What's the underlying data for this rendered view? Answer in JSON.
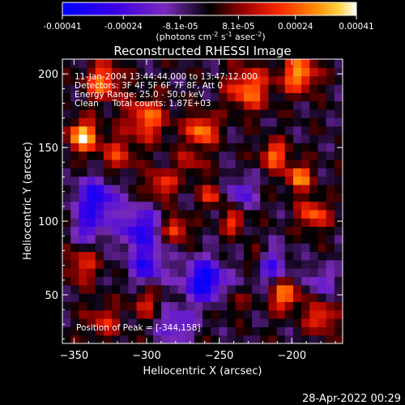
{
  "title": "Reconstructed RHESSI Image",
  "colorbar": {
    "units_prefix": "(photons cm",
    "units_sup1": "-2",
    "units_mid": " s",
    "units_sup2": "-1",
    "units_mid2": " asec",
    "units_sup3": "-2",
    "units_suffix": ")",
    "tick_labels": [
      "-0.00041",
      "-0.00024",
      "-8.1e-05",
      "8.1e-05",
      "0.00024",
      "0.00041"
    ],
    "tick_values": [
      -0.00041,
      -0.00024,
      -8.1e-05,
      8.1e-05,
      0.00024,
      0.00041
    ],
    "range": [
      -0.00041,
      0.00041
    ]
  },
  "annotations": {
    "time": "11-Jan-2004 13:44:44.000 to 13:47:12.000",
    "detectors": "Detectors: 3F 4F 5F 6F 7F 8F, Att 0",
    "energy": "Energy Range: 25.0 - 50.0 keV",
    "clean": "Clean     Total counts: 1.87E+03",
    "peak": "Position of Peak = [-344,158]"
  },
  "timestamp": "28-Apr-2022 00:29",
  "chart_data": {
    "type": "heatmap",
    "title": "Reconstructed RHESSI Image",
    "xlabel": "Heliocentric X (arcsec)",
    "ylabel": "Heliocentric Y (arcsec)",
    "xlim": [
      -358,
      -165
    ],
    "ylim": [
      17,
      210
    ],
    "x_ticks": [
      -350,
      -300,
      -250,
      -200
    ],
    "x_tick_labels": [
      "−350",
      "−300",
      "−250",
      "−200"
    ],
    "y_ticks": [
      50,
      100,
      150,
      200
    ],
    "y_tick_labels": [
      "50",
      "100",
      "150",
      "200"
    ],
    "peak_position": [
      -344,
      158
    ],
    "colormap": [
      "#0000ff",
      "#5a00e0",
      "#7a2abc",
      "#000000",
      "#a00000",
      "#ff2a00",
      "#ff8a00",
      "#ffd040",
      "#ffffff"
    ],
    "value_range": [
      -0.00041,
      0.00041
    ],
    "grid_size": [
      34,
      34
    ],
    "peak_value": 0.00041
  }
}
